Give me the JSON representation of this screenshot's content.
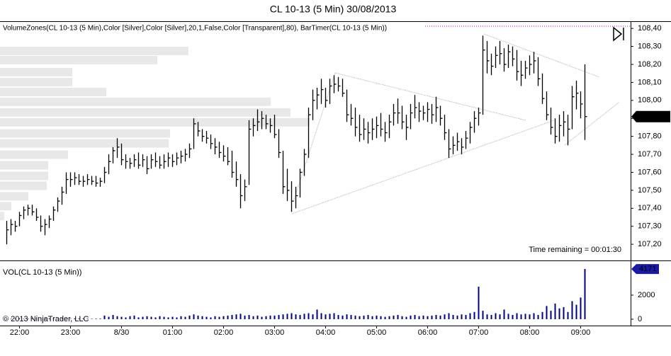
{
  "chart_data": [
    {
      "type": "hlc",
      "title": "CL 10-13 (5 Min)  30/08/2013",
      "indicator_label": "VolumeZones(CL 10-13 (5 Min),Color [Silver],Color [Silver],20,1,False,Color [Transparent],80), BarTimer(CL 10-13 (5 Min))",
      "timer_text": "Time remaining = 00:01:30",
      "last_label": "107,91",
      "color": "#000000",
      "categories": [
        null,
        null,
        null,
        "22:00",
        null,
        null,
        null,
        null,
        null,
        null,
        null,
        null,
        null,
        null,
        null,
        "23:00",
        null,
        null,
        null,
        null,
        null,
        null,
        null,
        null,
        null,
        null,
        null,
        "8/30",
        null,
        null,
        null,
        null,
        null,
        null,
        null,
        null,
        null,
        null,
        null,
        "01:00",
        null,
        null,
        null,
        null,
        null,
        null,
        null,
        null,
        null,
        null,
        null,
        "02:00",
        null,
        null,
        null,
        null,
        null,
        null,
        null,
        null,
        null,
        null,
        null,
        "03:00",
        null,
        null,
        null,
        null,
        null,
        null,
        null,
        null,
        null,
        null,
        null,
        "04:00",
        null,
        null,
        null,
        null,
        null,
        null,
        null,
        null,
        null,
        null,
        null,
        "05:00",
        null,
        null,
        null,
        null,
        null,
        null,
        null,
        null,
        null,
        null,
        null,
        "06:00",
        null,
        null,
        null,
        null,
        null,
        null,
        null,
        null,
        null,
        null,
        null,
        "07:00",
        null,
        null,
        null,
        null,
        null,
        null,
        null,
        null,
        null,
        null,
        null,
        "08:00",
        null,
        null,
        null,
        null,
        null,
        null,
        null,
        null,
        null,
        null,
        null,
        "09:00",
        null
      ],
      "high": [
        107.33,
        107.34,
        107.33,
        107.38,
        107.41,
        107.42,
        107.42,
        107.4,
        107.36,
        107.34,
        107.36,
        107.41,
        107.46,
        107.52,
        107.6,
        107.6,
        107.6,
        107.59,
        107.58,
        107.59,
        107.58,
        107.58,
        107.57,
        107.63,
        107.7,
        107.74,
        107.79,
        107.76,
        107.7,
        107.68,
        107.7,
        107.71,
        107.7,
        107.69,
        107.7,
        107.71,
        107.69,
        107.7,
        107.71,
        107.7,
        107.71,
        107.72,
        107.73,
        107.76,
        107.9,
        107.88,
        107.84,
        107.83,
        107.81,
        107.79,
        107.77,
        107.75,
        107.74,
        107.72,
        107.66,
        107.59,
        107.56,
        107.89,
        107.9,
        107.95,
        107.94,
        107.92,
        107.9,
        107.92,
        107.84,
        107.72,
        107.62,
        107.55,
        107.52,
        107.62,
        107.73,
        107.96,
        108.06,
        108.07,
        108.12,
        108.07,
        108.12,
        108.14,
        108.13,
        108.12,
        108.06,
        107.98,
        107.96,
        107.92,
        107.9,
        107.88,
        107.9,
        107.91,
        107.93,
        107.88,
        107.92,
        107.98,
        108.01,
        107.97,
        107.92,
        107.98,
        108.03,
        107.99,
        107.97,
        107.99,
        107.98,
        108.02,
        107.97,
        107.92,
        107.84,
        107.8,
        107.82,
        107.79,
        107.83,
        107.88,
        107.94,
        107.96,
        108.36,
        108.33,
        108.26,
        108.3,
        108.33,
        108.29,
        108.31,
        108.3,
        108.28,
        108.22,
        108.22,
        108.25,
        108.27,
        108.24,
        108.15,
        108.05,
        107.96,
        107.9,
        107.92,
        107.94,
        107.92,
        108.08,
        108.11,
        108.05,
        108.2
      ],
      "low": [
        107.2,
        107.25,
        107.27,
        107.3,
        107.34,
        107.36,
        107.36,
        107.33,
        107.27,
        107.25,
        107.29,
        107.33,
        107.38,
        107.42,
        107.48,
        107.52,
        107.53,
        107.53,
        107.52,
        107.53,
        107.53,
        107.52,
        107.52,
        107.54,
        107.59,
        107.65,
        107.68,
        107.64,
        107.62,
        107.62,
        107.63,
        107.62,
        107.63,
        107.59,
        107.62,
        107.63,
        107.62,
        107.62,
        107.63,
        107.63,
        107.64,
        107.65,
        107.66,
        107.68,
        107.73,
        107.8,
        107.77,
        107.76,
        107.73,
        107.7,
        107.68,
        107.66,
        107.64,
        107.57,
        107.52,
        107.4,
        107.44,
        107.53,
        107.8,
        107.83,
        107.84,
        107.84,
        107.82,
        107.79,
        107.68,
        107.48,
        107.44,
        107.38,
        107.4,
        107.46,
        107.58,
        107.68,
        107.89,
        107.95,
        107.98,
        107.96,
        107.98,
        108.04,
        108.05,
        108.02,
        107.88,
        107.86,
        107.8,
        107.77,
        107.78,
        107.76,
        107.78,
        107.79,
        107.8,
        107.77,
        107.79,
        107.86,
        107.87,
        107.84,
        107.78,
        107.84,
        107.9,
        107.88,
        107.89,
        107.88,
        107.87,
        107.88,
        107.86,
        107.78,
        107.68,
        107.7,
        107.72,
        107.7,
        107.73,
        107.76,
        107.82,
        107.86,
        107.92,
        108.15,
        108.14,
        108.18,
        108.2,
        108.16,
        108.18,
        108.19,
        108.11,
        108.08,
        108.12,
        108.14,
        108.15,
        108.08,
        107.98,
        107.89,
        107.81,
        107.76,
        107.77,
        107.8,
        107.75,
        107.84,
        107.95,
        107.9,
        107.78
      ],
      "close": [
        107.28,
        107.31,
        107.3,
        107.36,
        107.39,
        107.4,
        107.38,
        107.35,
        107.3,
        107.31,
        107.34,
        107.39,
        107.44,
        107.49,
        107.56,
        107.56,
        107.57,
        107.55,
        107.55,
        107.56,
        107.55,
        107.54,
        107.55,
        107.6,
        107.66,
        107.72,
        107.74,
        107.67,
        107.66,
        107.65,
        107.67,
        107.64,
        107.67,
        107.62,
        107.67,
        107.66,
        107.64,
        107.66,
        107.68,
        107.66,
        107.68,
        107.69,
        107.7,
        107.73,
        107.87,
        107.83,
        107.8,
        107.79,
        107.76,
        107.74,
        107.71,
        107.69,
        107.66,
        107.6,
        107.56,
        107.47,
        107.52,
        107.84,
        107.86,
        107.88,
        107.9,
        107.87,
        107.86,
        107.81,
        107.71,
        107.52,
        107.5,
        107.44,
        107.47,
        107.6,
        107.7,
        107.92,
        108.0,
        108.03,
        108.06,
        108.0,
        108.08,
        108.09,
        108.08,
        108.04,
        107.92,
        107.9,
        107.85,
        107.81,
        107.84,
        107.82,
        107.84,
        107.86,
        107.84,
        107.82,
        107.88,
        107.93,
        107.93,
        107.88,
        107.85,
        107.93,
        107.96,
        107.94,
        107.93,
        107.95,
        107.92,
        107.96,
        107.9,
        107.82,
        107.73,
        107.75,
        107.77,
        107.74,
        107.79,
        107.85,
        107.9,
        107.93,
        108.28,
        108.22,
        108.19,
        108.25,
        108.26,
        108.2,
        108.27,
        108.23,
        108.16,
        108.14,
        108.18,
        108.2,
        108.22,
        108.12,
        108.01,
        107.92,
        107.85,
        107.8,
        107.86,
        107.88,
        107.84,
        108.02,
        108.04,
        107.98,
        107.91
      ],
      "volume_zones": {
        "color": "#e8e8e8",
        "levels": [
          108.275,
          108.224,
          108.157,
          108.102,
          108.047,
          107.992,
          107.933,
          107.878,
          107.816,
          107.761,
          107.698,
          107.639,
          107.58,
          107.525,
          107.467,
          107.412,
          107.357
        ],
        "values": [
          266,
          222,
          102,
          102,
          150,
          382,
          410,
          437,
          240,
          238,
          96,
          68,
          68,
          66,
          40,
          16,
          6
        ]
      },
      "ylim": [
        107.11,
        108.44
      ],
      "yticks": [
        {
          "value": 107.2,
          "label": "107,20"
        },
        {
          "value": 107.3,
          "label": "107,30"
        },
        {
          "value": 107.4,
          "label": "107,40"
        },
        {
          "value": 107.5,
          "label": "107,50"
        },
        {
          "value": 107.6,
          "label": "107,60"
        },
        {
          "value": 107.7,
          "label": "107,70"
        },
        {
          "value": 107.8,
          "label": "107,80"
        },
        {
          "value": 107.9,
          "label": "107,90"
        },
        {
          "value": 108.0,
          "label": "108,00"
        },
        {
          "value": 108.1,
          "label": "108,10"
        },
        {
          "value": 108.2,
          "label": "108,20"
        },
        {
          "value": 108.3,
          "label": "108,30"
        },
        {
          "value": 108.4,
          "label": "108,40"
        }
      ]
    },
    {
      "type": "bar",
      "title": "VOL(CL 10-13 (5 Min))",
      "color": "#00008b",
      "values": [
        50,
        30,
        40,
        60,
        30,
        40,
        50,
        30,
        40,
        60,
        50,
        40,
        30,
        50,
        40,
        30,
        60,
        40,
        50,
        40,
        30,
        40,
        50,
        300,
        200,
        350,
        250,
        200,
        150,
        250,
        300,
        150,
        200,
        250,
        200,
        150,
        250,
        200,
        150,
        200,
        150,
        250,
        200,
        300,
        400,
        300,
        250,
        200,
        150,
        250,
        200,
        250,
        300,
        350,
        400,
        450,
        300,
        350,
        250,
        300,
        200,
        250,
        300,
        300,
        350,
        400,
        450,
        500,
        400,
        350,
        450,
        500,
        400,
        800,
        500,
        400,
        450,
        500,
        350,
        300,
        400,
        350,
        300,
        250,
        300,
        350,
        250,
        300,
        250,
        200,
        250,
        300,
        350,
        250,
        200,
        300,
        350,
        250,
        300,
        250,
        300,
        350,
        300,
        400,
        500,
        350,
        300,
        400,
        350,
        500,
        600,
        2700,
        700,
        400,
        350,
        500,
        400,
        800,
        450,
        350,
        500,
        400,
        450,
        400,
        500,
        350,
        600,
        1100,
        700,
        1300,
        900,
        1000,
        600,
        1500,
        1200,
        1800,
        4171
      ],
      "ylim": [
        -530,
        4765
      ],
      "yticks": [
        0,
        2000
      ]
    }
  ],
  "copyright": "© 2013 NinjaTrader, LLC"
}
